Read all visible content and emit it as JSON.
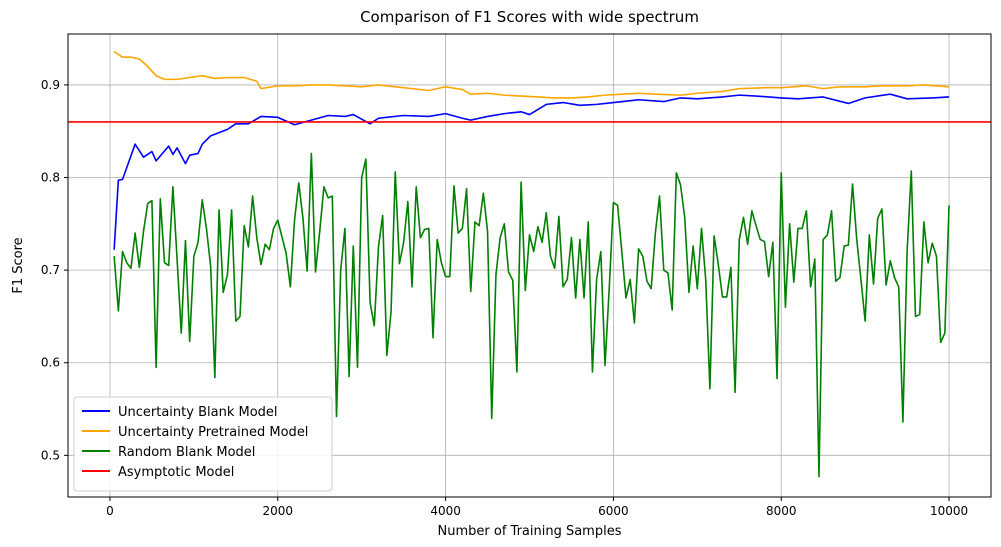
{
  "chart_data": {
    "type": "line",
    "title": "Comparison of F1 Scores with wide spectrum",
    "xlabel": "Number of Training Samples",
    "ylabel": "F1 Score",
    "xlim": [
      -500,
      10500
    ],
    "ylim": [
      0.455,
      0.955
    ],
    "xticks": [
      0,
      2000,
      4000,
      6000,
      8000,
      10000
    ],
    "yticks": [
      0.5,
      0.6,
      0.7,
      0.8,
      0.9
    ],
    "grid": true,
    "legend_position": "lower-left",
    "series": [
      {
        "name": "Uncertainty Blank Model",
        "color": "#0000ff",
        "points": [
          [
            50,
            0.722
          ],
          [
            100,
            0.797
          ],
          [
            150,
            0.798
          ],
          [
            300,
            0.836
          ],
          [
            400,
            0.822
          ],
          [
            500,
            0.828
          ],
          [
            550,
            0.818
          ],
          [
            700,
            0.834
          ],
          [
            750,
            0.825
          ],
          [
            800,
            0.832
          ],
          [
            900,
            0.815
          ],
          [
            950,
            0.824
          ],
          [
            1050,
            0.826
          ],
          [
            1100,
            0.836
          ],
          [
            1200,
            0.845
          ],
          [
            1400,
            0.852
          ],
          [
            1500,
            0.858
          ],
          [
            1650,
            0.858
          ],
          [
            1800,
            0.866
          ],
          [
            2000,
            0.865
          ],
          [
            2200,
            0.857
          ],
          [
            2400,
            0.862
          ],
          [
            2600,
            0.867
          ],
          [
            2800,
            0.866
          ],
          [
            2900,
            0.868
          ],
          [
            3100,
            0.858
          ],
          [
            3200,
            0.864
          ],
          [
            3500,
            0.867
          ],
          [
            3800,
            0.866
          ],
          [
            4000,
            0.869
          ],
          [
            4200,
            0.864
          ],
          [
            4300,
            0.862
          ],
          [
            4500,
            0.866
          ],
          [
            4700,
            0.869
          ],
          [
            4900,
            0.871
          ],
          [
            5000,
            0.868
          ],
          [
            5200,
            0.879
          ],
          [
            5400,
            0.881
          ],
          [
            5600,
            0.878
          ],
          [
            5800,
            0.879
          ],
          [
            6000,
            0.881
          ],
          [
            6300,
            0.884
          ],
          [
            6600,
            0.882
          ],
          [
            6800,
            0.886
          ],
          [
            7000,
            0.885
          ],
          [
            7300,
            0.887
          ],
          [
            7500,
            0.889
          ],
          [
            7700,
            0.888
          ],
          [
            8000,
            0.886
          ],
          [
            8200,
            0.885
          ],
          [
            8500,
            0.887
          ],
          [
            8800,
            0.88
          ],
          [
            9000,
            0.886
          ],
          [
            9300,
            0.89
          ],
          [
            9500,
            0.885
          ],
          [
            9800,
            0.886
          ],
          [
            10000,
            0.887
          ]
        ]
      },
      {
        "name": "Uncertainty Pretrained Model",
        "color": "#ffa500",
        "points": [
          [
            50,
            0.936
          ],
          [
            150,
            0.93
          ],
          [
            250,
            0.93
          ],
          [
            350,
            0.928
          ],
          [
            450,
            0.92
          ],
          [
            550,
            0.91
          ],
          [
            650,
            0.906
          ],
          [
            800,
            0.906
          ],
          [
            950,
            0.908
          ],
          [
            1100,
            0.91
          ],
          [
            1250,
            0.907
          ],
          [
            1400,
            0.908
          ],
          [
            1600,
            0.908
          ],
          [
            1750,
            0.904
          ],
          [
            1800,
            0.896
          ],
          [
            2000,
            0.899
          ],
          [
            2200,
            0.899
          ],
          [
            2400,
            0.9
          ],
          [
            2600,
            0.9
          ],
          [
            2800,
            0.899
          ],
          [
            3000,
            0.898
          ],
          [
            3200,
            0.9
          ],
          [
            3400,
            0.898
          ],
          [
            3600,
            0.896
          ],
          [
            3800,
            0.894
          ],
          [
            4000,
            0.898
          ],
          [
            4200,
            0.895
          ],
          [
            4300,
            0.89
          ],
          [
            4500,
            0.891
          ],
          [
            4700,
            0.889
          ],
          [
            4900,
            0.888
          ],
          [
            5100,
            0.887
          ],
          [
            5300,
            0.886
          ],
          [
            5500,
            0.886
          ],
          [
            5700,
            0.887
          ],
          [
            5900,
            0.889
          ],
          [
            6100,
            0.89
          ],
          [
            6300,
            0.891
          ],
          [
            6500,
            0.89
          ],
          [
            6800,
            0.889
          ],
          [
            7000,
            0.891
          ],
          [
            7300,
            0.893
          ],
          [
            7500,
            0.896
          ],
          [
            7800,
            0.897
          ],
          [
            8000,
            0.897
          ],
          [
            8300,
            0.899
          ],
          [
            8500,
            0.896
          ],
          [
            8700,
            0.898
          ],
          [
            9000,
            0.898
          ],
          [
            9200,
            0.899
          ],
          [
            9500,
            0.899
          ],
          [
            9700,
            0.9
          ],
          [
            10000,
            0.898
          ]
        ]
      },
      {
        "name": "Random Blank Model",
        "color": "#008000",
        "points": [
          [
            50,
            0.715
          ],
          [
            100,
            0.656
          ],
          [
            150,
            0.72
          ],
          [
            200,
            0.708
          ],
          [
            250,
            0.702
          ],
          [
            300,
            0.74
          ],
          [
            350,
            0.703
          ],
          [
            400,
            0.742
          ],
          [
            450,
            0.772
          ],
          [
            500,
            0.775
          ],
          [
            550,
            0.595
          ],
          [
            600,
            0.777
          ],
          [
            650,
            0.708
          ],
          [
            700,
            0.705
          ],
          [
            750,
            0.79
          ],
          [
            800,
            0.712
          ],
          [
            850,
            0.632
          ],
          [
            900,
            0.732
          ],
          [
            950,
            0.623
          ],
          [
            1000,
            0.715
          ],
          [
            1050,
            0.73
          ],
          [
            1100,
            0.776
          ],
          [
            1150,
            0.745
          ],
          [
            1200,
            0.704
          ],
          [
            1250,
            0.584
          ],
          [
            1300,
            0.765
          ],
          [
            1350,
            0.676
          ],
          [
            1400,
            0.695
          ],
          [
            1450,
            0.765
          ],
          [
            1500,
            0.645
          ],
          [
            1550,
            0.65
          ],
          [
            1600,
            0.748
          ],
          [
            1650,
            0.725
          ],
          [
            1700,
            0.78
          ],
          [
            1750,
            0.735
          ],
          [
            1800,
            0.706
          ],
          [
            1850,
            0.728
          ],
          [
            1900,
            0.722
          ],
          [
            1950,
            0.745
          ],
          [
            2000,
            0.754
          ],
          [
            2050,
            0.736
          ],
          [
            2100,
            0.718
          ],
          [
            2150,
            0.682
          ],
          [
            2200,
            0.754
          ],
          [
            2250,
            0.794
          ],
          [
            2300,
            0.756
          ],
          [
            2350,
            0.699
          ],
          [
            2400,
            0.826
          ],
          [
            2450,
            0.698
          ],
          [
            2500,
            0.742
          ],
          [
            2550,
            0.79
          ],
          [
            2600,
            0.778
          ],
          [
            2650,
            0.78
          ],
          [
            2700,
            0.542
          ],
          [
            2750,
            0.7
          ],
          [
            2800,
            0.745
          ],
          [
            2850,
            0.585
          ],
          [
            2900,
            0.726
          ],
          [
            2950,
            0.595
          ],
          [
            3000,
            0.8
          ],
          [
            3050,
            0.82
          ],
          [
            3100,
            0.665
          ],
          [
            3150,
            0.64
          ],
          [
            3200,
            0.725
          ],
          [
            3250,
            0.759
          ],
          [
            3300,
            0.608
          ],
          [
            3350,
            0.655
          ],
          [
            3400,
            0.806
          ],
          [
            3450,
            0.707
          ],
          [
            3500,
            0.73
          ],
          [
            3550,
            0.774
          ],
          [
            3600,
            0.682
          ],
          [
            3650,
            0.79
          ],
          [
            3700,
            0.735
          ],
          [
            3750,
            0.744
          ],
          [
            3800,
            0.745
          ],
          [
            3850,
            0.627
          ],
          [
            3900,
            0.733
          ],
          [
            3950,
            0.708
          ],
          [
            4000,
            0.693
          ],
          [
            4050,
            0.693
          ],
          [
            4100,
            0.791
          ],
          [
            4150,
            0.74
          ],
          [
            4200,
            0.745
          ],
          [
            4250,
            0.788
          ],
          [
            4300,
            0.677
          ],
          [
            4350,
            0.752
          ],
          [
            4400,
            0.748
          ],
          [
            4450,
            0.783
          ],
          [
            4500,
            0.742
          ],
          [
            4550,
            0.54
          ],
          [
            4600,
            0.695
          ],
          [
            4650,
            0.735
          ],
          [
            4700,
            0.75
          ],
          [
            4750,
            0.698
          ],
          [
            4800,
            0.689
          ],
          [
            4850,
            0.59
          ],
          [
            4900,
            0.795
          ],
          [
            4950,
            0.678
          ],
          [
            5000,
            0.738
          ],
          [
            5050,
            0.72
          ],
          [
            5100,
            0.747
          ],
          [
            5150,
            0.73
          ],
          [
            5200,
            0.762
          ],
          [
            5250,
            0.715
          ],
          [
            5300,
            0.702
          ],
          [
            5350,
            0.758
          ],
          [
            5400,
            0.682
          ],
          [
            5450,
            0.69
          ],
          [
            5500,
            0.735
          ],
          [
            5550,
            0.67
          ],
          [
            5600,
            0.733
          ],
          [
            5650,
            0.67
          ],
          [
            5700,
            0.752
          ],
          [
            5750,
            0.59
          ],
          [
            5800,
            0.69
          ],
          [
            5850,
            0.72
          ],
          [
            5900,
            0.597
          ],
          [
            5950,
            0.68
          ],
          [
            6000,
            0.773
          ],
          [
            6050,
            0.77
          ],
          [
            6100,
            0.72
          ],
          [
            6150,
            0.67
          ],
          [
            6200,
            0.69
          ],
          [
            6250,
            0.643
          ],
          [
            6300,
            0.723
          ],
          [
            6350,
            0.715
          ],
          [
            6400,
            0.688
          ],
          [
            6450,
            0.68
          ],
          [
            6500,
            0.74
          ],
          [
            6550,
            0.78
          ],
          [
            6600,
            0.7
          ],
          [
            6650,
            0.697
          ],
          [
            6700,
            0.657
          ],
          [
            6750,
            0.805
          ],
          [
            6800,
            0.792
          ],
          [
            6850,
            0.757
          ],
          [
            6900,
            0.676
          ],
          [
            6950,
            0.726
          ],
          [
            7000,
            0.68
          ],
          [
            7050,
            0.745
          ],
          [
            7100,
            0.69
          ],
          [
            7150,
            0.572
          ],
          [
            7200,
            0.737
          ],
          [
            7250,
            0.706
          ],
          [
            7300,
            0.671
          ],
          [
            7350,
            0.671
          ],
          [
            7400,
            0.703
          ],
          [
            7450,
            0.568
          ],
          [
            7500,
            0.733
          ],
          [
            7550,
            0.757
          ],
          [
            7600,
            0.728
          ],
          [
            7650,
            0.764
          ],
          [
            7700,
            0.748
          ],
          [
            7750,
            0.733
          ],
          [
            7800,
            0.731
          ],
          [
            7850,
            0.693
          ],
          [
            7900,
            0.73
          ],
          [
            7950,
            0.583
          ],
          [
            8000,
            0.805
          ],
          [
            8050,
            0.66
          ],
          [
            8100,
            0.75
          ],
          [
            8150,
            0.687
          ],
          [
            8200,
            0.745
          ],
          [
            8250,
            0.745
          ],
          [
            8300,
            0.764
          ],
          [
            8350,
            0.682
          ],
          [
            8400,
            0.712
          ],
          [
            8450,
            0.477
          ],
          [
            8500,
            0.733
          ],
          [
            8550,
            0.738
          ],
          [
            8600,
            0.764
          ],
          [
            8650,
            0.688
          ],
          [
            8700,
            0.692
          ],
          [
            8750,
            0.726
          ],
          [
            8800,
            0.727
          ],
          [
            8850,
            0.793
          ],
          [
            8900,
            0.733
          ],
          [
            8950,
            0.69
          ],
          [
            9000,
            0.645
          ],
          [
            9050,
            0.738
          ],
          [
            9100,
            0.685
          ],
          [
            9150,
            0.756
          ],
          [
            9200,
            0.766
          ],
          [
            9250,
            0.684
          ],
          [
            9300,
            0.71
          ],
          [
            9350,
            0.692
          ],
          [
            9400,
            0.682
          ],
          [
            9450,
            0.536
          ],
          [
            9500,
            0.72
          ],
          [
            9550,
            0.807
          ],
          [
            9600,
            0.65
          ],
          [
            9650,
            0.652
          ],
          [
            9700,
            0.752
          ],
          [
            9750,
            0.708
          ],
          [
            9800,
            0.729
          ],
          [
            9850,
            0.715
          ],
          [
            9900,
            0.622
          ],
          [
            9950,
            0.632
          ],
          [
            10000,
            0.77
          ]
        ]
      },
      {
        "name": "Asymptotic Model",
        "color": "#ff0000",
        "constant_y": 0.86
      }
    ]
  }
}
